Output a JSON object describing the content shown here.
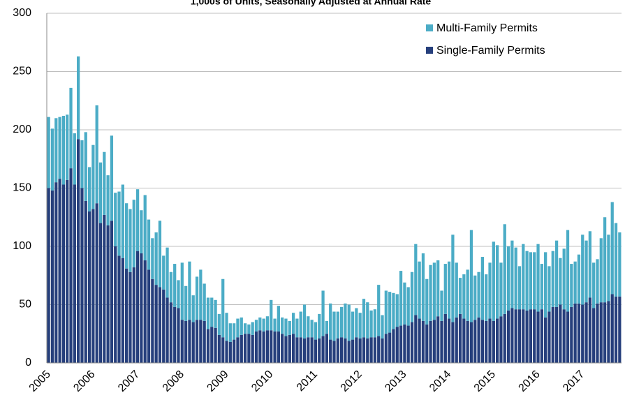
{
  "chart_data": {
    "type": "stacked_bar",
    "title": "1,000s of Units, Seasonally Adjusted at Annual Rate",
    "categories": [
      "2005",
      null,
      null,
      null,
      null,
      null,
      null,
      null,
      null,
      null,
      null,
      null,
      "2006",
      null,
      null,
      null,
      null,
      null,
      null,
      null,
      null,
      null,
      null,
      null,
      "2007",
      null,
      null,
      null,
      null,
      null,
      null,
      null,
      null,
      null,
      null,
      null,
      "2008",
      null,
      null,
      null,
      null,
      null,
      null,
      null,
      null,
      null,
      null,
      null,
      "2009",
      null,
      null,
      null,
      null,
      null,
      null,
      null,
      null,
      null,
      null,
      null,
      "2010",
      null,
      null,
      null,
      null,
      null,
      null,
      null,
      null,
      null,
      null,
      null,
      "2011",
      null,
      null,
      null,
      null,
      null,
      null,
      null,
      null,
      null,
      null,
      null,
      "2012",
      null,
      null,
      null,
      null,
      null,
      null,
      null,
      null,
      null,
      null,
      null,
      "2013",
      null,
      null,
      null,
      null,
      null,
      null,
      null,
      null,
      null,
      null,
      null,
      "2014",
      null,
      null,
      null,
      null,
      null,
      null,
      null,
      null,
      null,
      null,
      null,
      "2015",
      null,
      null,
      null,
      null,
      null,
      null,
      null,
      null,
      null,
      null,
      null,
      "2016",
      null,
      null,
      null,
      null,
      null,
      null,
      null,
      null,
      null,
      null,
      null,
      "2017",
      null,
      null,
      null,
      null,
      null,
      null,
      null,
      null,
      null,
      null
    ],
    "series": [
      {
        "name": "Single-Family Permits",
        "color": "#263f7c",
        "values": [
          150,
          148,
          155,
          158,
          153,
          157,
          167,
          153,
          192,
          150,
          139,
          130,
          132,
          137,
          120,
          127,
          118,
          122,
          100,
          92,
          90,
          81,
          78,
          82,
          96,
          94,
          88,
          80,
          72,
          67,
          65,
          63,
          56,
          52,
          48,
          47,
          37,
          36,
          37,
          35,
          37,
          37,
          36,
          29,
          31,
          30,
          24,
          22,
          19,
          18,
          20,
          22,
          24,
          25,
          25,
          24,
          27,
          28,
          27,
          28,
          28,
          27,
          27,
          25,
          23,
          24,
          25,
          22,
          22,
          21,
          22,
          22,
          20,
          21,
          23,
          25,
          20,
          19,
          21,
          22,
          21,
          19,
          20,
          22,
          21,
          22,
          21,
          22,
          22,
          23,
          21,
          25,
          26,
          29,
          31,
          32,
          33,
          32,
          35,
          41,
          38,
          36,
          33,
          36,
          37,
          40,
          36,
          42,
          38,
          35,
          39,
          42,
          38,
          36,
          35,
          37,
          39,
          37,
          36,
          38,
          36,
          38,
          40,
          42,
          45,
          47,
          46,
          46,
          46,
          45,
          46,
          46,
          44,
          46,
          39,
          44,
          48,
          48,
          50,
          46,
          44,
          48,
          51,
          51,
          50,
          52,
          56,
          47,
          51,
          52,
          52,
          53,
          59,
          57,
          57
        ]
      },
      {
        "name": "Multi-Family Permits",
        "color": "#4bacc6",
        "values": [
          61,
          53,
          55,
          53,
          59,
          56,
          69,
          44,
          71,
          41,
          59,
          38,
          55,
          84,
          52,
          54,
          43,
          73,
          46,
          55,
          63,
          56,
          54,
          58,
          53,
          37,
          56,
          43,
          35,
          45,
          57,
          29,
          43,
          26,
          37,
          24,
          49,
          30,
          50,
          23,
          37,
          43,
          32,
          27,
          25,
          24,
          18,
          50,
          24,
          16,
          14,
          16,
          15,
          9,
          8,
          11,
          10,
          11,
          11,
          12,
          26,
          11,
          22,
          14,
          15,
          12,
          18,
          16,
          22,
          29,
          18,
          15,
          15,
          21,
          39,
          11,
          31,
          25,
          23,
          26,
          30,
          31,
          24,
          25,
          22,
          33,
          31,
          23,
          24,
          44,
          20,
          37,
          35,
          31,
          28,
          47,
          36,
          33,
          43,
          61,
          49,
          58,
          39,
          48,
          49,
          48,
          26,
          43,
          49,
          75,
          47,
          31,
          38,
          44,
          79,
          38,
          39,
          54,
          40,
          48,
          68,
          63,
          46,
          77,
          55,
          58,
          53,
          37,
          56,
          51,
          49,
          49,
          58,
          39,
          56,
          39,
          48,
          57,
          40,
          52,
          70,
          37,
          36,
          42,
          60,
          53,
          57,
          39,
          38,
          55,
          73,
          57,
          79,
          63,
          55
        ]
      }
    ],
    "ylim": [
      0,
      300
    ],
    "yticks": [
      0,
      50,
      100,
      150,
      200,
      250,
      300
    ],
    "grid": true,
    "legend": "top-right"
  }
}
